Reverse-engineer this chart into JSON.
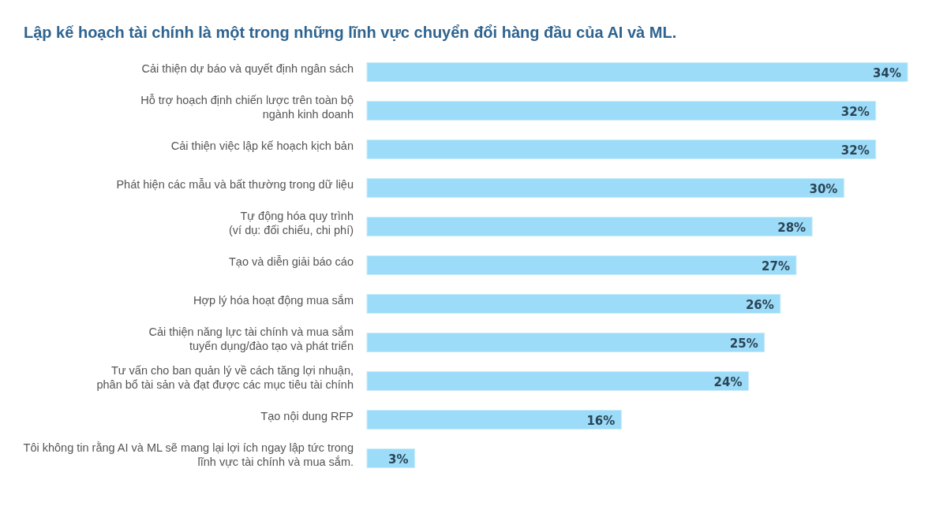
{
  "chart_data": {
    "type": "bar",
    "orientation": "horizontal",
    "title": "Lập kế hoạch tài chính là một trong những lĩnh vực chuyển đổi hàng đầu của AI và ML.",
    "categories": [
      "Cải thiện dự báo và quyết định ngân sách",
      "Hỗ trợ hoạch định chiến lược trên toàn bộ\nngành kinh doanh",
      "Cải thiện việc lập kế hoạch kịch bản",
      "Phát hiện các mẫu và bất thường trong dữ liệu",
      "Tự động hóa quy trình\n(ví dụ: đối chiếu, chi phí)",
      "Tạo và diễn giải báo cáo",
      "Hợp lý hóa hoạt động mua sắm",
      "Cải thiện năng lực tài chính và mua sắm\ntuyển dụng/đào tạo và phát triển",
      "Tư vấn cho ban quản lý về cách tăng lợi nhuận,\nphân bổ tài sản và đạt được các mục tiêu tài chính",
      "Tạo nội dung RFP",
      "Tôi không tin rằng AI và ML sẽ mang lại lợi ích ngay lập tức trong\nlĩnh vực tài chính và mua sắm."
    ],
    "values": [
      34,
      32,
      32,
      30,
      28,
      27,
      26,
      25,
      24,
      16,
      3
    ],
    "value_labels": [
      "34%",
      "32%",
      "32%",
      "30%",
      "28%",
      "27%",
      "26%",
      "25%",
      "24%",
      "16%",
      "3%"
    ],
    "color": "#9ddcf8"
  }
}
